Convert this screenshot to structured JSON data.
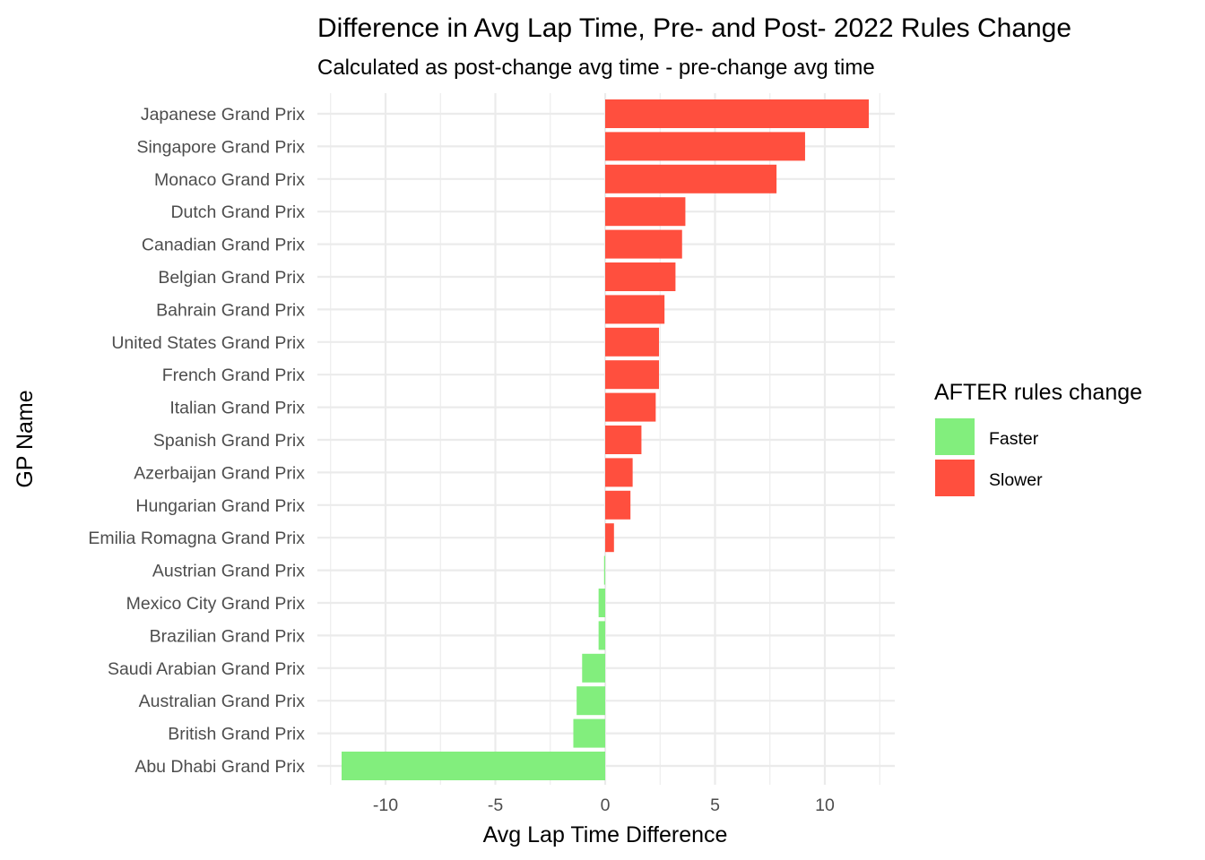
{
  "chart_data": {
    "type": "bar",
    "orientation": "horizontal",
    "title": "Difference in Avg Lap Time, Pre- and Post- 2022 Rules Change",
    "subtitle": "Calculated as post-change avg time - pre-change avg time",
    "xlabel": "Avg Lap Time Difference",
    "ylabel": "GP Name",
    "xlim": [
      -12.6,
      13.2
    ],
    "xticks": [
      -10,
      -5,
      0,
      5,
      10
    ],
    "grid": true,
    "legend": {
      "title": "AFTER rules change",
      "placement": "right",
      "entries": [
        {
          "label": "Faster",
          "color": "#82ee7d"
        },
        {
          "label": "Slower",
          "color": "#ff4f3e"
        }
      ]
    },
    "categories": [
      "Japanese Grand Prix",
      "Singapore Grand Prix",
      "Monaco Grand Prix",
      "Dutch Grand Prix",
      "Canadian Grand Prix",
      "Belgian Grand Prix",
      "Bahrain Grand Prix",
      "United States Grand Prix",
      "French Grand Prix",
      "Italian Grand Prix",
      "Spanish Grand Prix",
      "Azerbaijan Grand Prix",
      "Hungarian Grand Prix",
      "Emilia Romagna Grand Prix",
      "Austrian Grand Prix",
      "Mexico City Grand Prix",
      "Brazilian Grand Prix",
      "Saudi Arabian Grand Prix",
      "Australian Grand Prix",
      "British Grand Prix",
      "Abu Dhabi Grand Prix"
    ],
    "values": [
      12.0,
      9.1,
      7.8,
      3.65,
      3.5,
      3.2,
      2.7,
      2.45,
      2.45,
      2.3,
      1.65,
      1.25,
      1.15,
      0.4,
      -0.05,
      -0.3,
      -0.3,
      -1.05,
      -1.3,
      -1.45,
      -12.0
    ],
    "groups": [
      "Slower",
      "Slower",
      "Slower",
      "Slower",
      "Slower",
      "Slower",
      "Slower",
      "Slower",
      "Slower",
      "Slower",
      "Slower",
      "Slower",
      "Slower",
      "Slower",
      "Faster",
      "Faster",
      "Faster",
      "Faster",
      "Faster",
      "Faster",
      "Faster"
    ]
  }
}
